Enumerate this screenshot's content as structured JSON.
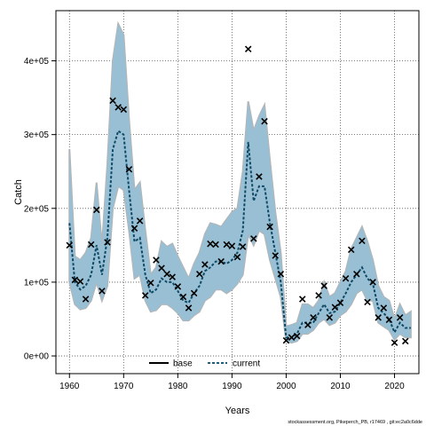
{
  "chart_data": {
    "type": "line",
    "title": "",
    "xlabel": "Years",
    "ylabel": "Catch",
    "xlim": [
      1957.5,
      2024.5
    ],
    "ylim": [
      -24000,
      468000
    ],
    "grid": true,
    "x_ticks": [
      1960,
      1970,
      1980,
      1990,
      2000,
      2010,
      2020
    ],
    "x_tick_labels": [
      "1960",
      "1970",
      "1980",
      "1990",
      "2000",
      "2010",
      "2020"
    ],
    "y_ticks": [
      0,
      100000,
      200000,
      300000,
      400000
    ],
    "y_tick_labels": [
      "0e+00",
      "1e+05",
      "2e+05",
      "3e+05",
      "4e+05"
    ],
    "legend": {
      "placement": "bottom-center",
      "entries": [
        {
          "label": "base",
          "color": "#000000",
          "style": "solid"
        },
        {
          "label": "current",
          "color": "#1f5f7a",
          "style": "dashed"
        }
      ]
    },
    "colors": {
      "base_band": "#b5b5b5",
      "current_band": "#8fc3df",
      "current_line": "#0e4a66",
      "base_line": "#000000"
    },
    "series": [
      {
        "name": "current",
        "kind": "band",
        "x": [
          1960,
          1961,
          1962,
          1963,
          1964,
          1965,
          1966,
          1967,
          1968,
          1969,
          1970,
          1971,
          1972,
          1973,
          1974,
          1975,
          1976,
          1977,
          1978,
          1979,
          1980,
          1981,
          1982,
          1983,
          1984,
          1985,
          1986,
          1987,
          1988,
          1989,
          1990,
          1991,
          1992,
          1993,
          1994,
          1995,
          1996,
          1997,
          1998,
          1999,
          2000,
          2001,
          2002,
          2003,
          2004,
          2005,
          2006,
          2007,
          2008,
          2009,
          2010,
          2011,
          2012,
          2013,
          2014,
          2015,
          2016,
          2017,
          2018,
          2019,
          2020,
          2021,
          2022,
          2023
        ],
        "lower": [
          100000,
          70000,
          63000,
          65000,
          75000,
          100000,
          75000,
          95000,
          200000,
          230000,
          225000,
          170000,
          105000,
          110000,
          75000,
          60000,
          62000,
          70000,
          70000,
          65000,
          58000,
          48000,
          48000,
          55000,
          60000,
          75000,
          80000,
          90000,
          90000,
          85000,
          90000,
          98000,
          110000,
          165000,
          150000,
          170000,
          165000,
          130000,
          105000,
          80000,
          20000,
          18000,
          20000,
          30000,
          30000,
          35000,
          45000,
          50000,
          42000,
          45000,
          55000,
          60000,
          70000,
          85000,
          90000,
          75000,
          75000,
          45000,
          40000,
          35000,
          22000,
          30000,
          25000,
          25000
        ],
        "upper": [
          280000,
          135000,
          130000,
          140000,
          160000,
          235000,
          150000,
          260000,
          400000,
          450000,
          435000,
          320000,
          225000,
          235000,
          170000,
          110000,
          120000,
          155000,
          148000,
          152000,
          135000,
          120000,
          105000,
          125000,
          140000,
          165000,
          180000,
          178000,
          175000,
          185000,
          195000,
          200000,
          250000,
          345000,
          305000,
          325000,
          340000,
          265000,
          195000,
          140000,
          40000,
          42000,
          45000,
          70000,
          70000,
          65000,
          75000,
          100000,
          80000,
          85000,
          100000,
          115000,
          145000,
          160000,
          175000,
          155000,
          130000,
          95000,
          80000,
          75000,
          50000,
          70000,
          55000,
          60000
        ]
      },
      {
        "name": "current",
        "kind": "line",
        "x": [
          1960,
          1961,
          1962,
          1963,
          1964,
          1965,
          1966,
          1967,
          1968,
          1969,
          1970,
          1971,
          1972,
          1973,
          1974,
          1975,
          1976,
          1977,
          1978,
          1979,
          1980,
          1981,
          1982,
          1983,
          1984,
          1985,
          1986,
          1987,
          1988,
          1989,
          1990,
          1991,
          1992,
          1993,
          1994,
          1995,
          1996,
          1997,
          1998,
          1999,
          2000,
          2001,
          2002,
          2003,
          2004,
          2005,
          2006,
          2007,
          2008,
          2009,
          2010,
          2011,
          2012,
          2013,
          2014,
          2015,
          2016,
          2017,
          2018,
          2019,
          2020,
          2021,
          2022,
          2023
        ],
        "y": [
          180000,
          100000,
          90000,
          95000,
          110000,
          150000,
          110000,
          160000,
          280000,
          305000,
          300000,
          225000,
          155000,
          160000,
          110000,
          85000,
          90000,
          105000,
          100000,
          100000,
          88000,
          75000,
          72000,
          85000,
          95000,
          115000,
          120000,
          128000,
          128000,
          125000,
          130000,
          140000,
          170000,
          290000,
          210000,
          230000,
          230000,
          180000,
          140000,
          100000,
          25000,
          25000,
          30000,
          45000,
          45000,
          45000,
          58000,
          70000,
          58000,
          60000,
          72000,
          85000,
          100000,
          110000,
          120000,
          105000,
          98000,
          65000,
          58000,
          50000,
          32000,
          45000,
          38000,
          38000
        ]
      },
      {
        "name": "observed",
        "kind": "points",
        "marker": "x",
        "x": [
          1960,
          1961,
          1962,
          1963,
          1964,
          1965,
          1966,
          1967,
          1968,
          1969,
          1970,
          1971,
          1972,
          1973,
          1974,
          1975,
          1976,
          1977,
          1978,
          1979,
          1980,
          1981,
          1982,
          1983,
          1984,
          1985,
          1986,
          1987,
          1988,
          1989,
          1990,
          1991,
          1992,
          1993,
          1994,
          1995,
          1996,
          1997,
          1998,
          1999,
          2000,
          2001,
          2002,
          2003,
          2004,
          2005,
          2006,
          2007,
          2008,
          2009,
          2010,
          2011,
          2012,
          2013,
          2014,
          2015,
          2016,
          2017,
          2018,
          2019,
          2020,
          2021,
          2022
        ],
        "y": [
          150000,
          103000,
          101000,
          77000,
          151000,
          198000,
          88000,
          154000,
          346000,
          337000,
          334000,
          253000,
          173000,
          183000,
          82000,
          99000,
          130000,
          119000,
          111000,
          107000,
          94000,
          80000,
          65000,
          85000,
          111000,
          124000,
          152000,
          151000,
          128000,
          151000,
          149000,
          134000,
          148000,
          416000,
          159000,
          243000,
          318000,
          175000,
          136000,
          111000,
          21000,
          25000,
          27000,
          77000,
          42000,
          52000,
          82000,
          95000,
          52000,
          66000,
          72000,
          105000,
          144000,
          111000,
          156000,
          73000,
          100000,
          52000,
          65000,
          49000,
          18000,
          52000,
          20000
        ]
      }
    ],
    "footer": "stockassessment.org, Pikeperch_PB, r17469 , git:ec2a0c6dde"
  }
}
